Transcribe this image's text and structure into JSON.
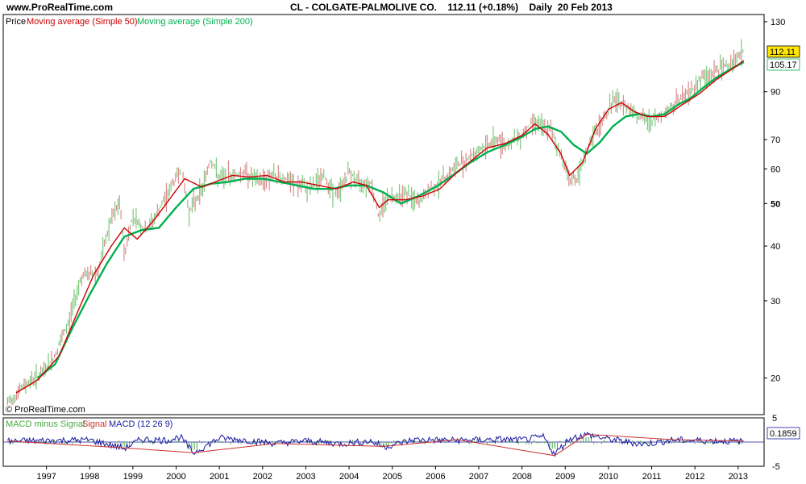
{
  "site": "www.ProRealTime.com",
  "header": {
    "symbol": "CL - COLGATE-PALMOLIVE CO.",
    "price": "112.11 (+0.18%)",
    "period": "Daily",
    "date": "20 Feb 2013"
  },
  "legend": {
    "price": "Price",
    "ma50": "Moving average (Simple 50)",
    "ma200": "Moving average (Simple 200)"
  },
  "copyright": "© ProRealTime.com",
  "badges": {
    "last_price": "112.11",
    "ma200_value": "105.17",
    "macd_value": "0.1859"
  },
  "colors": {
    "ma50": "#cc0000",
    "ma200": "#00b050",
    "candle": "#7fc97f",
    "macd": "#1a1aa0",
    "signal": "#cc3333",
    "hist": "#44aa44",
    "badge_price": "#ffe600"
  },
  "macd_legend": {
    "hist": "MACD minus Signal",
    "signal": "Signal",
    "macd": "MACD (12 26 9)"
  },
  "chart_data": [
    {
      "type": "line",
      "title": "CL - COLGATE-PALMOLIVE CO.",
      "yscale": "log",
      "ylim": [
        16.5,
        135
      ],
      "yticks": [
        20,
        30,
        40,
        50,
        60,
        70,
        90,
        130
      ],
      "xlabels": [
        "1997",
        "1998",
        "1999",
        "2000",
        "2001",
        "2002",
        "2003",
        "2004",
        "2005",
        "2006",
        "2007",
        "2008",
        "2009",
        "2010",
        "2011",
        "2012",
        "2013"
      ],
      "series": [
        {
          "name": "Price",
          "x": [
            1996.1,
            1996.5,
            1996.9,
            1997.2,
            1997.5,
            1997.8,
            1998.2,
            1998.5,
            1998.7,
            1998.8,
            1999.0,
            1999.3,
            1999.6,
            1999.9,
            2000.1,
            2000.3,
            2000.6,
            2000.8,
            2001.0,
            2001.3,
            2001.6,
            2001.9,
            2002.2,
            2002.5,
            2002.8,
            2003.1,
            2003.4,
            2003.7,
            2004.0,
            2004.2,
            2004.5,
            2004.7,
            2004.8,
            2005.0,
            2005.3,
            2005.6,
            2005.9,
            2006.2,
            2006.5,
            2006.8,
            2007.1,
            2007.4,
            2007.7,
            2008.0,
            2008.3,
            2008.5,
            2008.7,
            2008.8,
            2009.1,
            2009.3,
            2009.6,
            2009.9,
            2010.1,
            2010.3,
            2010.5,
            2010.7,
            2010.9,
            2011.1,
            2011.4,
            2011.6,
            2011.9,
            2012.1,
            2012.4,
            2012.7,
            2013.0,
            2013.13
          ],
          "values": [
            17.5,
            19.3,
            20.5,
            22.5,
            26.5,
            34,
            35,
            46,
            50,
            38,
            47,
            43,
            48,
            55,
            60,
            48,
            54,
            63,
            57,
            58,
            59,
            56,
            58,
            57,
            55,
            54,
            58,
            52,
            59,
            56,
            56,
            46,
            51,
            52,
            53,
            50,
            54,
            57,
            61,
            64,
            67,
            70,
            68,
            72,
            78,
            74,
            73,
            68,
            57,
            57,
            70,
            78,
            86,
            84,
            83,
            79,
            77,
            78,
            82,
            86,
            90,
            96,
            99,
            103,
            108,
            112.11
          ]
        },
        {
          "name": "Moving average (Simple 50)",
          "x": [
            1996.3,
            1996.8,
            1997.3,
            1997.7,
            1998.1,
            1998.5,
            1998.8,
            1999.1,
            1999.5,
            1999.9,
            2000.2,
            2000.6,
            2000.9,
            2001.3,
            2001.7,
            2002.1,
            2002.5,
            2002.9,
            2003.3,
            2003.7,
            2004.1,
            2004.4,
            2004.7,
            2004.9,
            2005.3,
            2005.7,
            2006.1,
            2006.5,
            2006.9,
            2007.2,
            2007.6,
            2008.0,
            2008.3,
            2008.6,
            2008.9,
            2009.1,
            2009.4,
            2009.7,
            2010.0,
            2010.3,
            2010.6,
            2010.9,
            2011.3,
            2011.7,
            2012.1,
            2012.5,
            2012.9,
            2013.13
          ],
          "values": [
            18.5,
            19.8,
            22.5,
            28,
            34.5,
            40,
            44,
            41.5,
            46,
            52,
            57,
            54.5,
            56,
            58,
            57.5,
            58,
            56,
            56,
            55,
            54,
            56,
            55,
            49,
            51,
            51,
            52,
            54,
            59,
            63.5,
            67,
            68.5,
            71.5,
            76,
            72,
            65,
            58,
            62,
            74,
            82,
            85,
            81,
            79,
            79,
            84,
            89,
            96,
            102,
            106
          ]
        },
        {
          "name": "Moving average (Simple 200)",
          "x": [
            1996.8,
            1997.2,
            1997.6,
            1998.0,
            1998.4,
            1998.8,
            1999.2,
            1999.6,
            2000.0,
            2000.4,
            2000.8,
            2001.2,
            2001.6,
            2002.0,
            2002.4,
            2002.8,
            2003.2,
            2003.6,
            2004.0,
            2004.4,
            2004.8,
            2005.2,
            2005.6,
            2006.0,
            2006.4,
            2006.8,
            2007.2,
            2007.6,
            2008.0,
            2008.3,
            2008.6,
            2008.9,
            2009.2,
            2009.5,
            2009.8,
            2010.1,
            2010.4,
            2010.7,
            2011.0,
            2011.3,
            2011.6,
            2011.9,
            2012.2,
            2012.5,
            2012.8,
            2013.13
          ],
          "values": [
            20,
            21.5,
            26,
            31,
            36.5,
            42,
            43.5,
            44,
            49,
            54,
            55.5,
            56,
            57,
            57,
            56,
            55,
            54,
            54,
            55,
            55,
            53,
            50,
            52,
            54.5,
            58,
            62,
            65.5,
            68,
            71,
            74,
            75,
            73,
            68,
            65,
            69,
            75,
            79,
            80,
            79,
            80,
            84,
            87,
            92,
            97,
            101,
            105.17
          ]
        }
      ]
    },
    {
      "type": "line",
      "title": "MACD (12 26 9)",
      "ylim": [
        -5,
        5
      ],
      "yticks": [
        5,
        -5
      ],
      "series": [
        {
          "name": "MACD (12 26 9)",
          "x": [
            1996.1,
            1997.0,
            1998.0,
            1998.8,
            1999.2,
            1999.8,
            2000.1,
            2000.4,
            2001.0,
            2001.5,
            2002.3,
            2003.0,
            2003.8,
            2004.5,
            2004.8,
            2005.5,
            2006.5,
            2007.5,
            2008.0,
            2008.5,
            2008.75,
            2009.1,
            2009.5,
            2010.0,
            2010.8,
            2011.5,
            2012.3,
            2013.13
          ],
          "values": [
            0.3,
            0.5,
            0.7,
            -2.2,
            1.0,
            0.6,
            1.8,
            -3.8,
            1.4,
            0.8,
            -0.5,
            0.4,
            -0.6,
            0.3,
            -1.7,
            0.8,
            0.6,
            0.9,
            0.7,
            1.8,
            -4.2,
            1.2,
            2.6,
            1.0,
            -0.8,
            0.7,
            0.5,
            0.1859
          ]
        },
        {
          "name": "Signal",
          "x": [
            1996.1,
            1998.8,
            2000.4,
            2002.3,
            2004.8,
            2006.5,
            2008.75,
            2009.5,
            2011.5,
            2013.13
          ],
          "values": [
            0.2,
            -1.2,
            -2.2,
            -0.3,
            -0.9,
            0.5,
            -2.8,
            1.6,
            0.5,
            0.2
          ]
        },
        {
          "name": "MACD minus Signal",
          "x": [
            1998.8,
            2000.4,
            2004.8,
            2008.75,
            2009.5
          ],
          "values": [
            -1.0,
            -1.6,
            -0.8,
            -1.4,
            1.0
          ]
        }
      ]
    }
  ]
}
